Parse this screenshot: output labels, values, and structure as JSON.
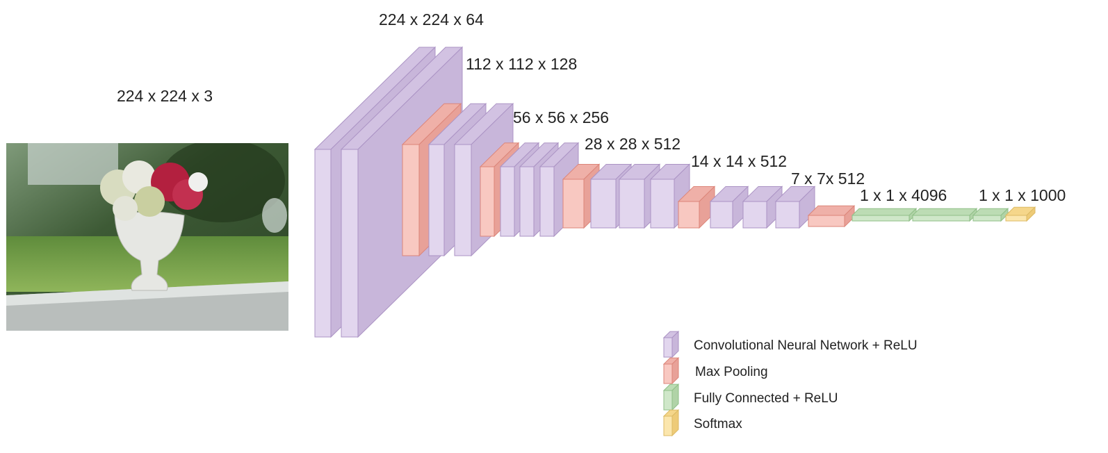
{
  "input": {
    "label": "224 x 224 x 3"
  },
  "stages": [
    {
      "label": "224 x 224 x 64"
    },
    {
      "label": "112 x 112 x 128"
    },
    {
      "label": "56 x 56 x 256"
    },
    {
      "label": "28 x 28 x 512"
    },
    {
      "label": "14 x 14 x 512"
    },
    {
      "label": "7 x 7x 512"
    },
    {
      "label": "1 x 1 x 4096"
    },
    {
      "label": "1 x 1 x 1000"
    }
  ],
  "legend": [
    {
      "label": "Convolutional Neural Network + ReLU"
    },
    {
      "label": "Max Pooling"
    },
    {
      "label": "Fully Connected + ReLU"
    },
    {
      "label": "Softmax"
    }
  ]
}
